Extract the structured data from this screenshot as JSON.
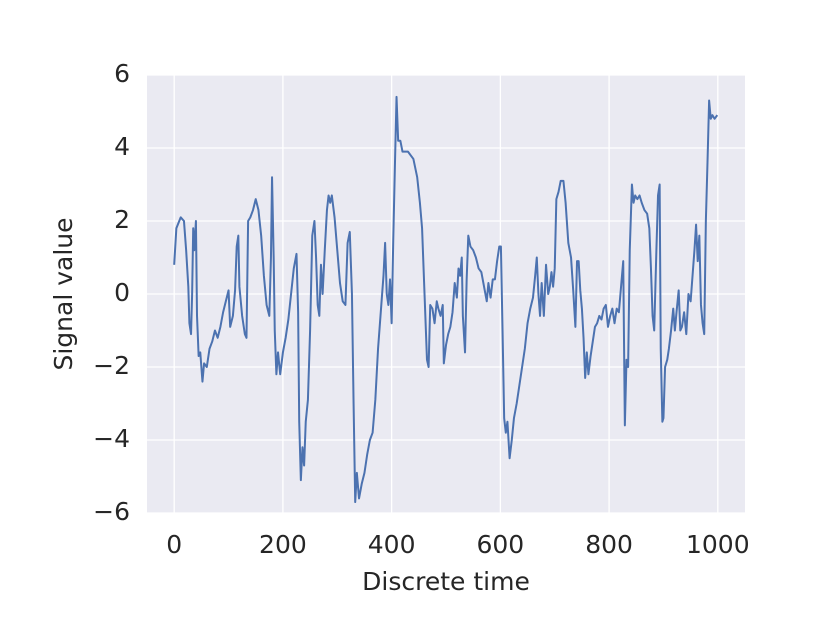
{
  "chart_data": {
    "type": "line",
    "xlabel": "Discrete time",
    "ylabel": "Signal value",
    "xlim": [
      -50,
      1050
    ],
    "ylim": [
      -6,
      6
    ],
    "xticks": [
      0,
      200,
      400,
      600,
      800,
      1000
    ],
    "yticks": [
      {
        "value": -6,
        "label": "−6"
      },
      {
        "value": -4,
        "label": "−4"
      },
      {
        "value": -2,
        "label": "−2"
      },
      0,
      2,
      4,
      6
    ],
    "grid": true,
    "background": "#eaeaf2",
    "series": [
      {
        "color": "#4c72b0",
        "x": [
          0,
          4,
          12,
          18,
          22,
          26,
          28,
          31,
          33,
          35,
          37,
          40,
          42,
          45,
          48,
          52,
          55,
          60,
          65,
          70,
          75,
          80,
          85,
          90,
          95,
          100,
          103,
          108,
          112,
          115,
          118,
          120,
          125,
          130,
          133,
          136,
          140,
          145,
          150,
          155,
          160,
          165,
          170,
          175,
          178,
          180,
          183,
          185,
          188,
          191,
          195,
          200,
          205,
          210,
          215,
          220,
          225,
          228,
          230,
          233,
          236,
          239,
          242,
          246,
          250,
          254,
          258,
          261,
          264,
          267,
          270,
          273,
          277,
          281,
          284,
          287,
          290,
          295,
          300,
          305,
          310,
          315,
          319,
          323,
          327,
          330,
          333,
          336,
          340,
          345,
          350,
          355,
          360,
          365,
          370,
          375,
          380,
          385,
          388,
          391,
          394,
          397,
          400,
          403,
          406,
          409,
          412,
          416,
          420,
          430,
          440,
          447,
          452,
          456,
          460,
          465,
          468,
          471,
          475,
          479,
          483,
          486,
          490,
          494,
          496,
          500,
          504,
          508,
          512,
          516,
          520,
          523,
          526,
          529,
          531,
          535,
          538,
          541,
          545,
          550,
          555,
          560,
          565,
          570,
          575,
          578,
          582,
          586,
          590,
          594,
          598,
          601,
          604,
          607,
          610,
          613,
          617,
          621,
          625,
          630,
          635,
          640,
          645,
          650,
          655,
          660,
          664,
          667,
          670,
          673,
          676,
          680,
          684,
          688,
          691,
          694,
          697,
          700,
          703,
          707,
          711,
          716,
          720,
          725,
          730,
          734,
          738,
          741,
          744,
          747,
          750,
          753,
          756,
          759,
          762,
          766,
          770,
          774,
          778,
          782,
          786,
          790,
          794,
          798,
          802,
          806,
          810,
          814,
          818,
          822,
          826,
          829,
          832,
          835,
          838,
          842,
          845,
          848,
          852,
          856,
          860,
          865,
          870,
          874,
          877,
          880,
          883,
          887,
          890,
          893,
          895,
          898,
          900,
          903,
          907,
          910,
          914,
          918,
          921,
          924,
          928,
          931,
          934,
          938,
          942,
          946,
          950,
          954,
          957,
          960,
          963,
          966,
          969,
          972,
          975,
          978,
          981,
          984,
          987,
          990,
          994,
          999
        ],
        "values": [
          0.8,
          1.8,
          2.1,
          2.0,
          1.2,
          0.2,
          -0.8,
          -1.1,
          0.0,
          1.8,
          1.2,
          2.0,
          -0.6,
          -1.7,
          -1.6,
          -2.4,
          -1.9,
          -2.0,
          -1.5,
          -1.3,
          -1.0,
          -1.2,
          -0.9,
          -0.5,
          -0.2,
          0.1,
          -0.9,
          -0.6,
          0.1,
          1.3,
          1.6,
          0.2,
          -0.6,
          -1.1,
          -1.2,
          2.0,
          2.1,
          2.3,
          2.6,
          2.3,
          1.6,
          0.5,
          -0.3,
          -0.6,
          1.0,
          3.2,
          1.0,
          -1.0,
          -2.2,
          -1.6,
          -2.2,
          -1.6,
          -1.2,
          -0.7,
          0.0,
          0.7,
          1.1,
          -0.5,
          -3.5,
          -5.1,
          -4.2,
          -4.7,
          -3.5,
          -2.9,
          -1.0,
          1.6,
          2.0,
          1.0,
          -0.3,
          -0.6,
          0.8,
          0.0,
          1.2,
          2.3,
          2.7,
          2.5,
          2.7,
          2.1,
          1.2,
          0.3,
          -0.2,
          -0.3,
          1.4,
          1.7,
          0.0,
          -3.0,
          -5.7,
          -4.9,
          -5.6,
          -5.2,
          -4.9,
          -4.4,
          -4.0,
          -3.8,
          -2.9,
          -1.5,
          -0.5,
          0.5,
          1.4,
          0.0,
          -0.3,
          0.4,
          -0.8,
          1.5,
          3.5,
          5.4,
          4.2,
          4.2,
          3.9,
          3.9,
          3.7,
          3.2,
          2.5,
          1.8,
          0.2,
          -1.8,
          -2.0,
          -0.3,
          -0.4,
          -0.8,
          -0.2,
          -0.4,
          -0.6,
          -0.3,
          -1.9,
          -1.4,
          -1.1,
          -0.9,
          -0.5,
          0.3,
          -0.1,
          0.7,
          0.5,
          1.0,
          -0.6,
          -1.6,
          0.4,
          1.6,
          1.3,
          1.2,
          1.0,
          0.7,
          0.6,
          0.2,
          -0.2,
          0.3,
          -0.1,
          0.4,
          0.4,
          0.9,
          1.3,
          1.3,
          -1.0,
          -3.4,
          -3.8,
          -3.5,
          -4.5,
          -4.0,
          -3.4,
          -3.0,
          -2.5,
          -2.0,
          -1.5,
          -0.8,
          -0.4,
          -0.1,
          0.5,
          1.0,
          0.0,
          -0.6,
          0.3,
          -0.6,
          0.8,
          0.0,
          0.2,
          0.6,
          0.2,
          0.7,
          2.6,
          2.8,
          3.1,
          3.1,
          2.5,
          1.4,
          1.0,
          0.1,
          -0.9,
          0.9,
          0.9,
          0.1,
          -0.4,
          -1.2,
          -2.3,
          -1.6,
          -2.2,
          -1.7,
          -1.3,
          -0.9,
          -0.8,
          -0.6,
          -0.7,
          -0.4,
          -0.3,
          -0.9,
          -0.6,
          -0.4,
          -0.8,
          -0.4,
          -0.5,
          0.2,
          0.9,
          -3.6,
          -1.8,
          -2.0,
          1.2,
          3.0,
          2.5,
          2.7,
          2.6,
          2.7,
          2.5,
          2.3,
          2.2,
          1.8,
          0.7,
          -0.6,
          -1.0,
          1.2,
          2.7,
          3.0,
          -1.5,
          -3.5,
          -3.4,
          -2.0,
          -1.8,
          -1.5,
          -1.0,
          -0.4,
          -1.0,
          -0.5,
          0.1,
          -1.0,
          -0.9,
          -0.5,
          -1.1,
          0.0,
          -0.2,
          0.6,
          1.2,
          1.9,
          0.9,
          1.6,
          -0.3,
          -0.8,
          -1.1,
          2.0,
          3.6,
          5.3,
          4.8,
          4.9,
          4.8,
          4.9
        ]
      }
    ]
  }
}
